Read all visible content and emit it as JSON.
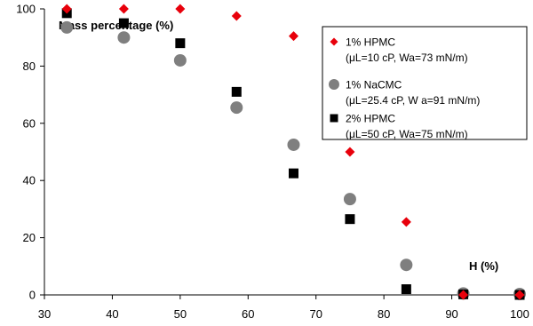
{
  "chart_data": {
    "type": "scatter",
    "ylabel": "Mass percentage (%)",
    "xlabel": "H (%)",
    "xlim": [
      30,
      100
    ],
    "ylim": [
      0,
      100
    ],
    "x_ticks": [
      "30",
      "40",
      "50",
      "60",
      "70",
      "80",
      "90",
      "100"
    ],
    "y_ticks": [
      "0",
      "20",
      "40",
      "60",
      "80",
      "100"
    ],
    "grid": false,
    "legend_position": "top-right",
    "series": [
      {
        "name": "1% HPMC",
        "name_detail": "(μL=10 cP, Wa=73 mN/m)",
        "marker": "diamond",
        "color": "#e8000b",
        "points": [
          [
            33.3,
            100
          ],
          [
            41.7,
            100
          ],
          [
            50,
            100
          ],
          [
            58.3,
            97.5
          ],
          [
            66.7,
            90.5
          ],
          [
            75,
            50
          ],
          [
            83.3,
            25.5
          ],
          [
            91.7,
            0
          ],
          [
            100,
            0
          ]
        ]
      },
      {
        "name": "1% NaCMC",
        "name_detail": "(μL=25.4 cP, W a=91 mN/m)",
        "marker": "circle",
        "color": "#7f7f7f",
        "points": [
          [
            33.3,
            93.5
          ],
          [
            41.7,
            90
          ],
          [
            50,
            82
          ],
          [
            58.3,
            65.5
          ],
          [
            66.7,
            52.5
          ],
          [
            75,
            33.5
          ],
          [
            83.3,
            10.5
          ],
          [
            91.7,
            0.5
          ],
          [
            100,
            0.3
          ]
        ]
      },
      {
        "name": "2% HPMC",
        "name_detail": "(μL=50 cP, Wa=75 mN/m)",
        "marker": "square",
        "color": "#000000",
        "points": [
          [
            33.3,
            98.5
          ],
          [
            41.7,
            95
          ],
          [
            50,
            88
          ],
          [
            58.3,
            71
          ],
          [
            66.7,
            42.5
          ],
          [
            75,
            26.5
          ],
          [
            83.3,
            2
          ],
          [
            91.7,
            0.2
          ],
          [
            100,
            0
          ]
        ]
      }
    ]
  }
}
